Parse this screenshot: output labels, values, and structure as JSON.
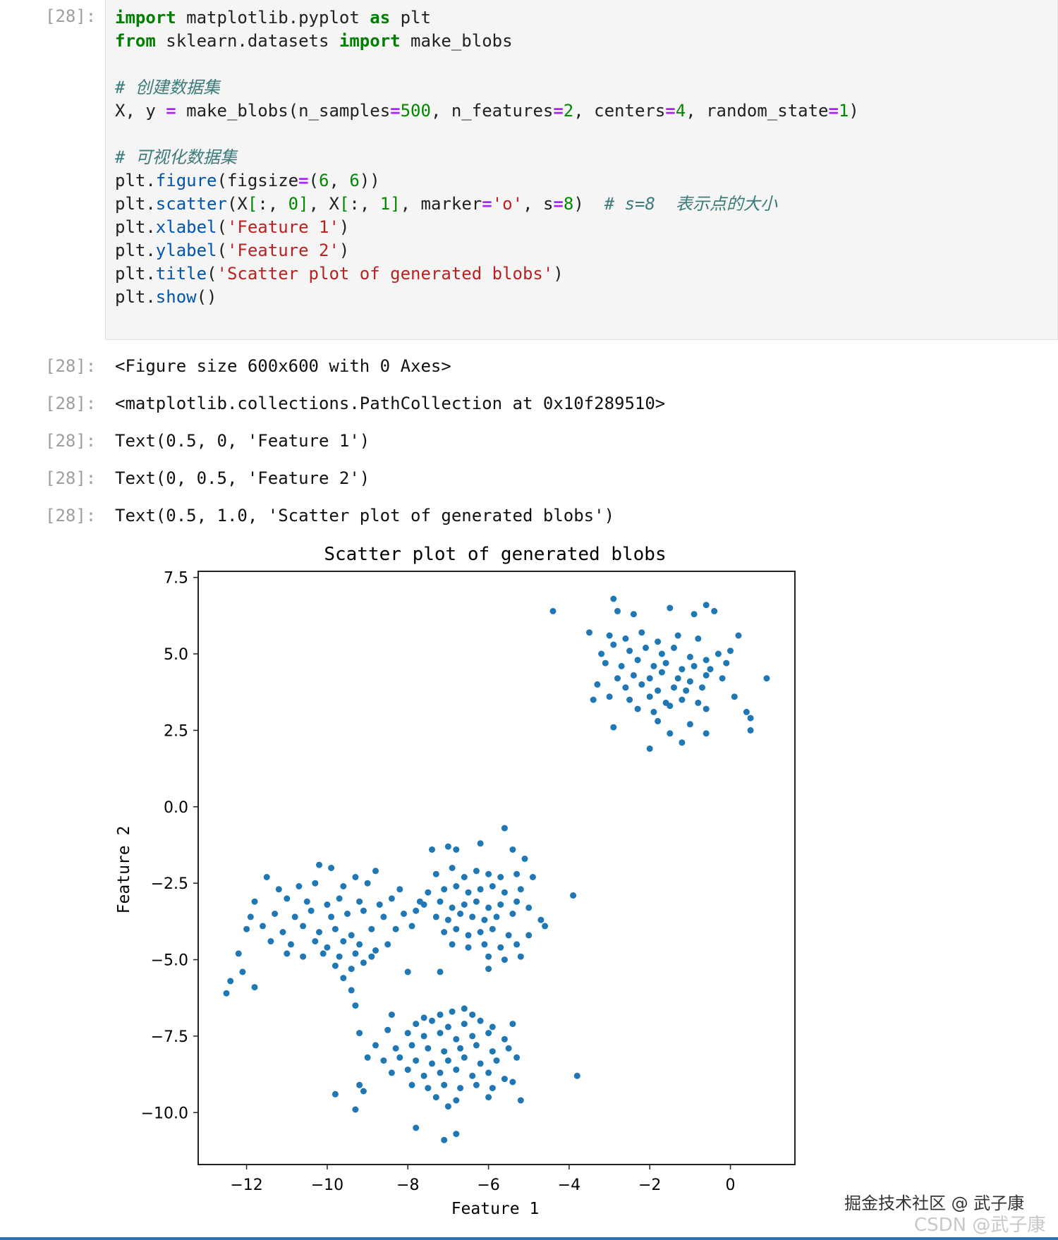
{
  "cells": {
    "prompt_label": "[28]:",
    "code": {
      "import1_kw1": "import",
      "import1_mod": " matplotlib.pyplot ",
      "import1_kw2": "as",
      "import1_alias": " plt",
      "import2_kw1": "from",
      "import2_mod": " sklearn.datasets ",
      "import2_kw2": "import",
      "import2_name": " make_blobs",
      "comment1": "# 创建数据集",
      "blobs_lhs": "X, y ",
      "blobs_call": " make_blobs(n_samples",
      "blobs_n": "500",
      "blobs_mid1": ", n_features",
      "blobs_f": "2",
      "blobs_mid2": ", centers",
      "blobs_c": "4",
      "blobs_mid3": ", random_state",
      "blobs_r": "1",
      "blobs_end": ")",
      "comment2": "# 可视化数据集",
      "fig_fn": "figure",
      "fig_arg": "(figsize",
      "fig_a": "6",
      "fig_b": "6",
      "scatter_fn": "scatter",
      "scatter_comment": "# s=8  表示点的大小",
      "xlabel_fn": "xlabel",
      "xlabel_str": "'Feature 1'",
      "ylabel_fn": "ylabel",
      "ylabel_str": "'Feature 2'",
      "title_fn": "title",
      "title_str": "'Scatter plot of generated blobs'",
      "show_fn": "show"
    },
    "outputs": [
      "<Figure size 600x600 with 0 Axes>",
      "<matplotlib.collections.PathCollection at 0x10f289510>",
      "Text(0.5, 0, 'Feature 1')",
      "Text(0, 0.5, 'Feature 2')",
      "Text(0.5, 1.0, 'Scatter plot of generated blobs')"
    ]
  },
  "chart_data": {
    "type": "scatter",
    "title": "Scatter plot of generated blobs",
    "xlabel": "Feature 1",
    "ylabel": "Feature 2",
    "xlim": [
      -13.2,
      1.6
    ],
    "ylim": [
      -11.7,
      7.7
    ],
    "xticks": [
      -12,
      -10,
      -8,
      -6,
      -4,
      -2,
      0
    ],
    "yticks": [
      7.5,
      5.0,
      2.5,
      0.0,
      -2.5,
      -5.0,
      -7.5,
      -10.0
    ],
    "xtick_labels": [
      "−12",
      "−10",
      "−8",
      "−6",
      "−4",
      "−2",
      "0"
    ],
    "ytick_labels": [
      "7.5",
      "5.0",
      "2.5",
      "0.0",
      "−2.5",
      "−5.0",
      "−7.5",
      "−10.0"
    ],
    "grid": false,
    "marker_color": "#1f77b4",
    "points": [
      [
        -4.4,
        6.4
      ],
      [
        -2.9,
        6.8
      ],
      [
        -2.8,
        6.4
      ],
      [
        -2.4,
        6.3
      ],
      [
        -1.5,
        6.5
      ],
      [
        -0.9,
        6.3
      ],
      [
        -0.6,
        6.6
      ],
      [
        -0.4,
        6.4
      ],
      [
        -3.5,
        5.7
      ],
      [
        -3.0,
        5.6
      ],
      [
        -2.6,
        5.5
      ],
      [
        -2.2,
        5.7
      ],
      [
        -1.8,
        5.4
      ],
      [
        -1.3,
        5.6
      ],
      [
        -0.8,
        5.5
      ],
      [
        0.2,
        5.6
      ],
      [
        -3.2,
        5.0
      ],
      [
        -2.9,
        5.3
      ],
      [
        -2.5,
        5.1
      ],
      [
        -2.1,
        5.2
      ],
      [
        -1.7,
        5.0
      ],
      [
        -1.4,
        5.2
      ],
      [
        -1.0,
        4.9
      ],
      [
        -0.6,
        4.8
      ],
      [
        -0.3,
        5.0
      ],
      [
        0.0,
        5.1
      ],
      [
        -3.1,
        4.7
      ],
      [
        -2.7,
        4.6
      ],
      [
        -2.3,
        4.8
      ],
      [
        -1.9,
        4.6
      ],
      [
        -1.6,
        4.7
      ],
      [
        -1.2,
        4.5
      ],
      [
        -0.9,
        4.6
      ],
      [
        -0.5,
        4.5
      ],
      [
        -0.1,
        4.7
      ],
      [
        -2.8,
        4.2
      ],
      [
        -2.4,
        4.3
      ],
      [
        -2.0,
        4.2
      ],
      [
        -1.7,
        4.4
      ],
      [
        -1.3,
        4.2
      ],
      [
        -1.0,
        4.1
      ],
      [
        -0.6,
        4.3
      ],
      [
        -0.2,
        4.2
      ],
      [
        0.9,
        4.2
      ],
      [
        -3.3,
        4.0
      ],
      [
        -2.6,
        3.9
      ],
      [
        -2.2,
        4.0
      ],
      [
        -1.8,
        3.8
      ],
      [
        -1.4,
        3.9
      ],
      [
        -1.1,
        3.8
      ],
      [
        -0.7,
        3.9
      ],
      [
        -3.0,
        3.6
      ],
      [
        -2.5,
        3.5
      ],
      [
        -2.0,
        3.6
      ],
      [
        -1.6,
        3.4
      ],
      [
        -1.2,
        3.5
      ],
      [
        -0.8,
        3.4
      ],
      [
        0.1,
        3.6
      ],
      [
        -3.4,
        3.5
      ],
      [
        -2.3,
        3.2
      ],
      [
        -1.9,
        3.1
      ],
      [
        -1.5,
        3.3
      ],
      [
        -0.6,
        3.2
      ],
      [
        0.4,
        3.1
      ],
      [
        0.5,
        2.9
      ],
      [
        -2.9,
        2.6
      ],
      [
        -1.8,
        2.8
      ],
      [
        -1.0,
        2.7
      ],
      [
        -1.5,
        2.4
      ],
      [
        -0.6,
        2.4
      ],
      [
        0.5,
        2.5
      ],
      [
        -1.2,
        2.1
      ],
      [
        -2.0,
        1.9
      ],
      [
        -11.5,
        -2.3
      ],
      [
        -10.2,
        -1.9
      ],
      [
        -9.9,
        -2.0
      ],
      [
        -9.3,
        -2.3
      ],
      [
        -8.8,
        -2.1
      ],
      [
        -11.2,
        -2.7
      ],
      [
        -10.7,
        -2.6
      ],
      [
        -10.3,
        -2.5
      ],
      [
        -9.6,
        -2.6
      ],
      [
        -9.0,
        -2.5
      ],
      [
        -8.2,
        -2.7
      ],
      [
        -11.8,
        -3.1
      ],
      [
        -11.0,
        -3.0
      ],
      [
        -10.5,
        -3.1
      ],
      [
        -10.0,
        -3.2
      ],
      [
        -9.7,
        -3.0
      ],
      [
        -9.2,
        -3.1
      ],
      [
        -8.7,
        -3.2
      ],
      [
        -8.4,
        -3.0
      ],
      [
        -7.7,
        -3.1
      ],
      [
        -11.9,
        -3.6
      ],
      [
        -11.3,
        -3.5
      ],
      [
        -10.8,
        -3.6
      ],
      [
        -10.4,
        -3.4
      ],
      [
        -9.9,
        -3.6
      ],
      [
        -9.5,
        -3.5
      ],
      [
        -9.1,
        -3.4
      ],
      [
        -8.6,
        -3.6
      ],
      [
        -8.1,
        -3.5
      ],
      [
        -7.8,
        -3.4
      ],
      [
        -12.0,
        -4.0
      ],
      [
        -11.6,
        -3.9
      ],
      [
        -11.1,
        -4.1
      ],
      [
        -10.6,
        -3.9
      ],
      [
        -10.2,
        -4.1
      ],
      [
        -9.8,
        -4.0
      ],
      [
        -9.4,
        -4.2
      ],
      [
        -8.9,
        -4.0
      ],
      [
        -8.3,
        -4.0
      ],
      [
        -7.9,
        -3.9
      ],
      [
        -11.4,
        -4.4
      ],
      [
        -10.9,
        -4.5
      ],
      [
        -10.3,
        -4.4
      ],
      [
        -10.0,
        -4.6
      ],
      [
        -9.6,
        -4.4
      ],
      [
        -9.2,
        -4.5
      ],
      [
        -8.8,
        -4.7
      ],
      [
        -8.5,
        -4.5
      ],
      [
        -11.0,
        -4.8
      ],
      [
        -10.6,
        -4.9
      ],
      [
        -10.1,
        -4.8
      ],
      [
        -9.7,
        -4.9
      ],
      [
        -9.3,
        -4.8
      ],
      [
        -8.9,
        -4.9
      ],
      [
        -9.8,
        -5.2
      ],
      [
        -9.4,
        -5.3
      ],
      [
        -9.1,
        -5.1
      ],
      [
        -12.2,
        -4.8
      ],
      [
        -12.1,
        -5.4
      ],
      [
        -12.4,
        -5.7
      ],
      [
        -12.5,
        -6.1
      ],
      [
        -11.8,
        -5.9
      ],
      [
        -9.6,
        -5.6
      ],
      [
        -9.4,
        -6.0
      ],
      [
        -9.3,
        -6.5
      ],
      [
        -7.4,
        -1.4
      ],
      [
        -7.0,
        -1.3
      ],
      [
        -6.8,
        -1.4
      ],
      [
        -6.2,
        -1.2
      ],
      [
        -5.6,
        -0.7
      ],
      [
        -5.4,
        -1.4
      ],
      [
        -5.1,
        -1.7
      ],
      [
        -7.3,
        -2.2
      ],
      [
        -6.9,
        -2.0
      ],
      [
        -6.6,
        -2.3
      ],
      [
        -6.3,
        -2.1
      ],
      [
        -6.0,
        -2.2
      ],
      [
        -5.7,
        -2.3
      ],
      [
        -5.3,
        -2.2
      ],
      [
        -4.9,
        -2.3
      ],
      [
        -7.5,
        -2.8
      ],
      [
        -7.1,
        -2.7
      ],
      [
        -6.8,
        -2.6
      ],
      [
        -6.5,
        -2.8
      ],
      [
        -6.2,
        -2.7
      ],
      [
        -5.9,
        -2.6
      ],
      [
        -5.6,
        -2.8
      ],
      [
        -5.2,
        -2.7
      ],
      [
        -3.9,
        -2.9
      ],
      [
        -7.6,
        -3.2
      ],
      [
        -7.2,
        -3.1
      ],
      [
        -6.9,
        -3.3
      ],
      [
        -6.6,
        -3.2
      ],
      [
        -6.3,
        -3.1
      ],
      [
        -6.0,
        -3.3
      ],
      [
        -5.7,
        -3.2
      ],
      [
        -5.3,
        -3.1
      ],
      [
        -5.0,
        -3.3
      ],
      [
        -7.3,
        -3.6
      ],
      [
        -7.0,
        -3.7
      ],
      [
        -6.7,
        -3.5
      ],
      [
        -6.4,
        -3.6
      ],
      [
        -6.1,
        -3.7
      ],
      [
        -5.8,
        -3.6
      ],
      [
        -5.4,
        -3.5
      ],
      [
        -4.7,
        -3.7
      ],
      [
        -4.6,
        -3.9
      ],
      [
        -7.1,
        -4.1
      ],
      [
        -6.8,
        -4.0
      ],
      [
        -6.5,
        -4.2
      ],
      [
        -6.2,
        -4.1
      ],
      [
        -5.9,
        -4.0
      ],
      [
        -5.5,
        -4.2
      ],
      [
        -5.0,
        -4.2
      ],
      [
        -6.9,
        -4.5
      ],
      [
        -6.5,
        -4.6
      ],
      [
        -6.1,
        -4.5
      ],
      [
        -5.7,
        -4.6
      ],
      [
        -5.3,
        -4.5
      ],
      [
        -6.0,
        -4.9
      ],
      [
        -5.6,
        -5.0
      ],
      [
        -5.2,
        -4.9
      ],
      [
        -6.0,
        -5.3
      ],
      [
        -8.0,
        -5.4
      ],
      [
        -7.2,
        -5.4
      ],
      [
        -7.6,
        -6.9
      ],
      [
        -7.2,
        -6.8
      ],
      [
        -6.9,
        -6.7
      ],
      [
        -6.6,
        -6.6
      ],
      [
        -6.4,
        -6.8
      ],
      [
        -8.4,
        -6.8
      ],
      [
        -7.8,
        -7.1
      ],
      [
        -7.4,
        -7.0
      ],
      [
        -7.0,
        -7.2
      ],
      [
        -6.6,
        -7.1
      ],
      [
        -6.2,
        -7.0
      ],
      [
        -5.9,
        -7.2
      ],
      [
        -5.4,
        -7.1
      ],
      [
        -9.2,
        -7.4
      ],
      [
        -8.5,
        -7.3
      ],
      [
        -8.0,
        -7.4
      ],
      [
        -7.6,
        -7.5
      ],
      [
        -7.2,
        -7.4
      ],
      [
        -6.8,
        -7.6
      ],
      [
        -6.4,
        -7.5
      ],
      [
        -6.0,
        -7.4
      ],
      [
        -5.6,
        -7.6
      ],
      [
        -8.8,
        -7.8
      ],
      [
        -8.3,
        -7.9
      ],
      [
        -7.9,
        -7.8
      ],
      [
        -7.5,
        -7.9
      ],
      [
        -7.1,
        -8.0
      ],
      [
        -6.7,
        -7.9
      ],
      [
        -6.3,
        -7.8
      ],
      [
        -5.9,
        -8.0
      ],
      [
        -5.5,
        -7.9
      ],
      [
        -9.0,
        -8.2
      ],
      [
        -8.6,
        -8.3
      ],
      [
        -8.2,
        -8.2
      ],
      [
        -7.8,
        -8.3
      ],
      [
        -7.4,
        -8.4
      ],
      [
        -7.0,
        -8.3
      ],
      [
        -6.6,
        -8.2
      ],
      [
        -6.2,
        -8.4
      ],
      [
        -5.8,
        -8.3
      ],
      [
        -5.3,
        -8.2
      ],
      [
        -8.4,
        -8.7
      ],
      [
        -8.0,
        -8.6
      ],
      [
        -7.6,
        -8.8
      ],
      [
        -7.2,
        -8.7
      ],
      [
        -6.8,
        -8.6
      ],
      [
        -6.4,
        -8.8
      ],
      [
        -6.0,
        -8.7
      ],
      [
        -5.6,
        -8.9
      ],
      [
        -3.8,
        -8.8
      ],
      [
        -9.2,
        -9.1
      ],
      [
        -7.9,
        -9.1
      ],
      [
        -7.5,
        -9.2
      ],
      [
        -7.1,
        -9.1
      ],
      [
        -6.7,
        -9.2
      ],
      [
        -6.3,
        -9.1
      ],
      [
        -5.9,
        -9.2
      ],
      [
        -5.4,
        -9.0
      ],
      [
        -9.8,
        -9.4
      ],
      [
        -9.1,
        -9.3
      ],
      [
        -7.3,
        -9.5
      ],
      [
        -6.8,
        -9.6
      ],
      [
        -6.0,
        -9.5
      ],
      [
        -5.2,
        -9.6
      ],
      [
        -9.3,
        -9.9
      ],
      [
        -7.0,
        -9.8
      ],
      [
        -7.8,
        -10.5
      ],
      [
        -7.1,
        -10.9
      ],
      [
        -6.8,
        -10.7
      ]
    ]
  },
  "watermark": {
    "line1": "掘金技术社区 @ 武子康",
    "line2": "CSDN @武子康"
  },
  "colors": {
    "keyword": "#008000",
    "operator": "#aa22ff",
    "number": "#008800",
    "string": "#ba2121",
    "function": "#0055aa",
    "comment": "#3d7b7b",
    "points": "#1f77b4"
  }
}
